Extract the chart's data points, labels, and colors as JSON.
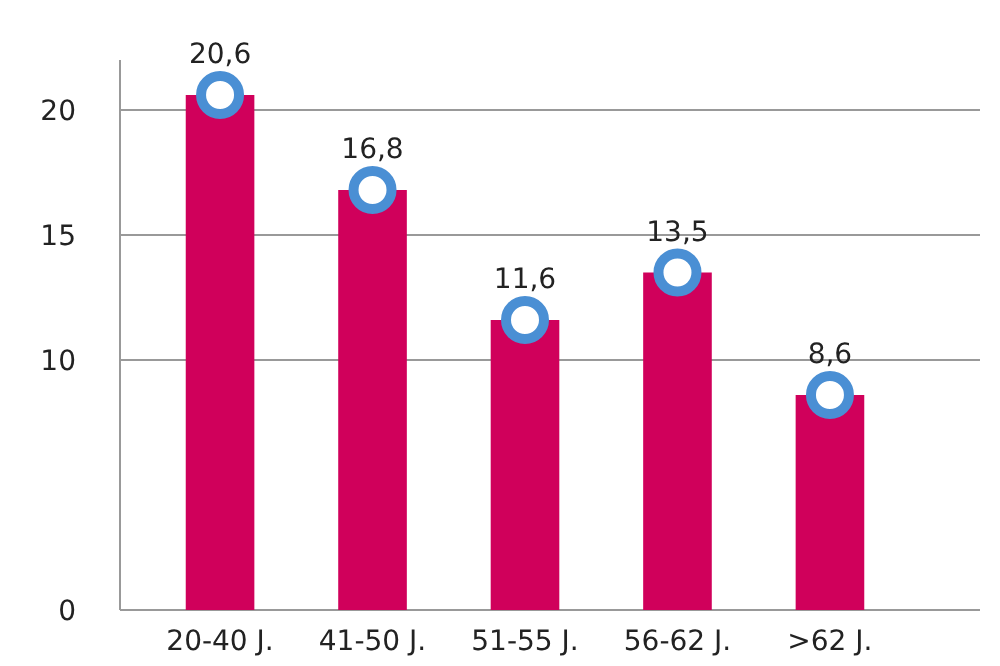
{
  "chart_data": {
    "type": "bar",
    "categories": [
      "20-40 J.",
      "41-50 J.",
      "51-55 J.",
      "56-62 J.",
      ">62 J."
    ],
    "series": [
      {
        "color": "#d0005b",
        "values": [
          20.6,
          16.8,
          11.6,
          13.5,
          8.6
        ]
      },
      {
        "type": "scatter",
        "color": "#4a8fd4",
        "x": [
          "20-40 J.",
          "41-50 J.",
          "51-55 J.",
          "56-62 J.",
          ">62 J."
        ],
        "values": [
          20.6,
          16.8,
          11.6,
          13.5,
          8.6
        ]
      }
    ],
    "value_labels": [
      "20,6",
      "16,8",
      "11,6",
      "13,5",
      "8,6"
    ],
    "ylim": [
      0,
      22
    ],
    "yticks": [
      0,
      10,
      15,
      20
    ],
    "grid": "y",
    "marker": "circle"
  }
}
